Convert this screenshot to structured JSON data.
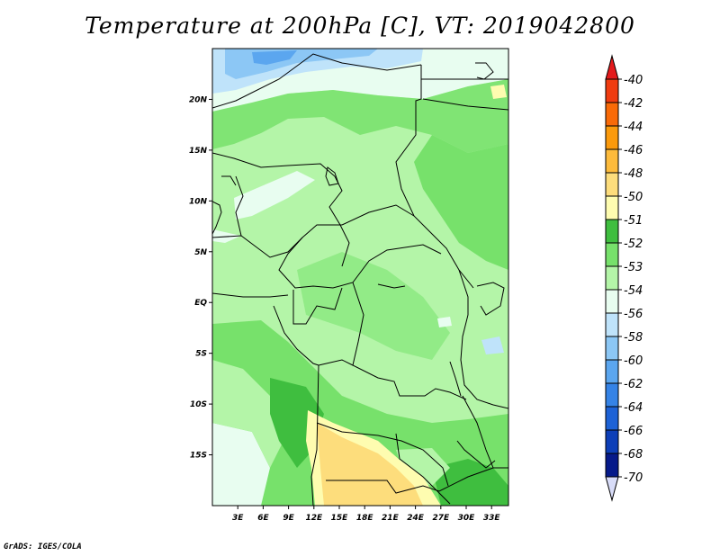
{
  "title": "Temperature at 200hPa [C], VT: 2019042800",
  "footer": "GrADS: IGES/COLA",
  "map": {
    "lon_range": [
      0,
      35
    ],
    "lat_range": [
      -20,
      25
    ],
    "lat_ticks": [
      {
        "value": 20,
        "label": "20N"
      },
      {
        "value": 15,
        "label": "15N"
      },
      {
        "value": 10,
        "label": "10N"
      },
      {
        "value": 5,
        "label": "5N"
      },
      {
        "value": 0,
        "label": "EQ"
      },
      {
        "value": -5,
        "label": "5S"
      },
      {
        "value": -10,
        "label": "10S"
      },
      {
        "value": -15,
        "label": "15S"
      }
    ],
    "lon_ticks": [
      {
        "value": 3,
        "label": "3E"
      },
      {
        "value": 6,
        "label": "6E"
      },
      {
        "value": 9,
        "label": "9E"
      },
      {
        "value": 12,
        "label": "12E"
      },
      {
        "value": 15,
        "label": "15E"
      },
      {
        "value": 18,
        "label": "18E"
      },
      {
        "value": 21,
        "label": "21E"
      },
      {
        "value": 24,
        "label": "24E"
      },
      {
        "value": 27,
        "label": "27E"
      },
      {
        "value": 30,
        "label": "30E"
      },
      {
        "value": 33,
        "label": "33E"
      }
    ]
  },
  "colorbar": {
    "labels": [
      "-40",
      "-42",
      "-44",
      "-46",
      "-48",
      "-50",
      "-51",
      "-52",
      "-53",
      "-54",
      "-56",
      "-58",
      "-60",
      "-62",
      "-64",
      "-66",
      "-68",
      "-70"
    ],
    "colors": [
      "#e31a1c",
      "#f03c10",
      "#f96a08",
      "#fb9a0c",
      "#fdbb3c",
      "#fddd7c",
      "#fefcb0",
      "#3fbe3f",
      "#77e16b",
      "#b4f5a8",
      "#e8fdf0",
      "#bfe3fa",
      "#8cc7f5",
      "#5ba6ef",
      "#3583e6",
      "#1d62d6",
      "#0d3fb8",
      "#061a8a",
      "#d8dcf8"
    ]
  },
  "fields": {
    "colors": {
      "base": "#b4f5a8",
      "mid": "#77e16b",
      "dark": "#3fbe3f",
      "pale": "#e8fdf0",
      "blue1": "#bfe3fa",
      "blue2": "#8cc7f5",
      "blue3": "#5ba6ef",
      "yellow": "#fddd7c",
      "cream": "#fefcb0"
    }
  }
}
